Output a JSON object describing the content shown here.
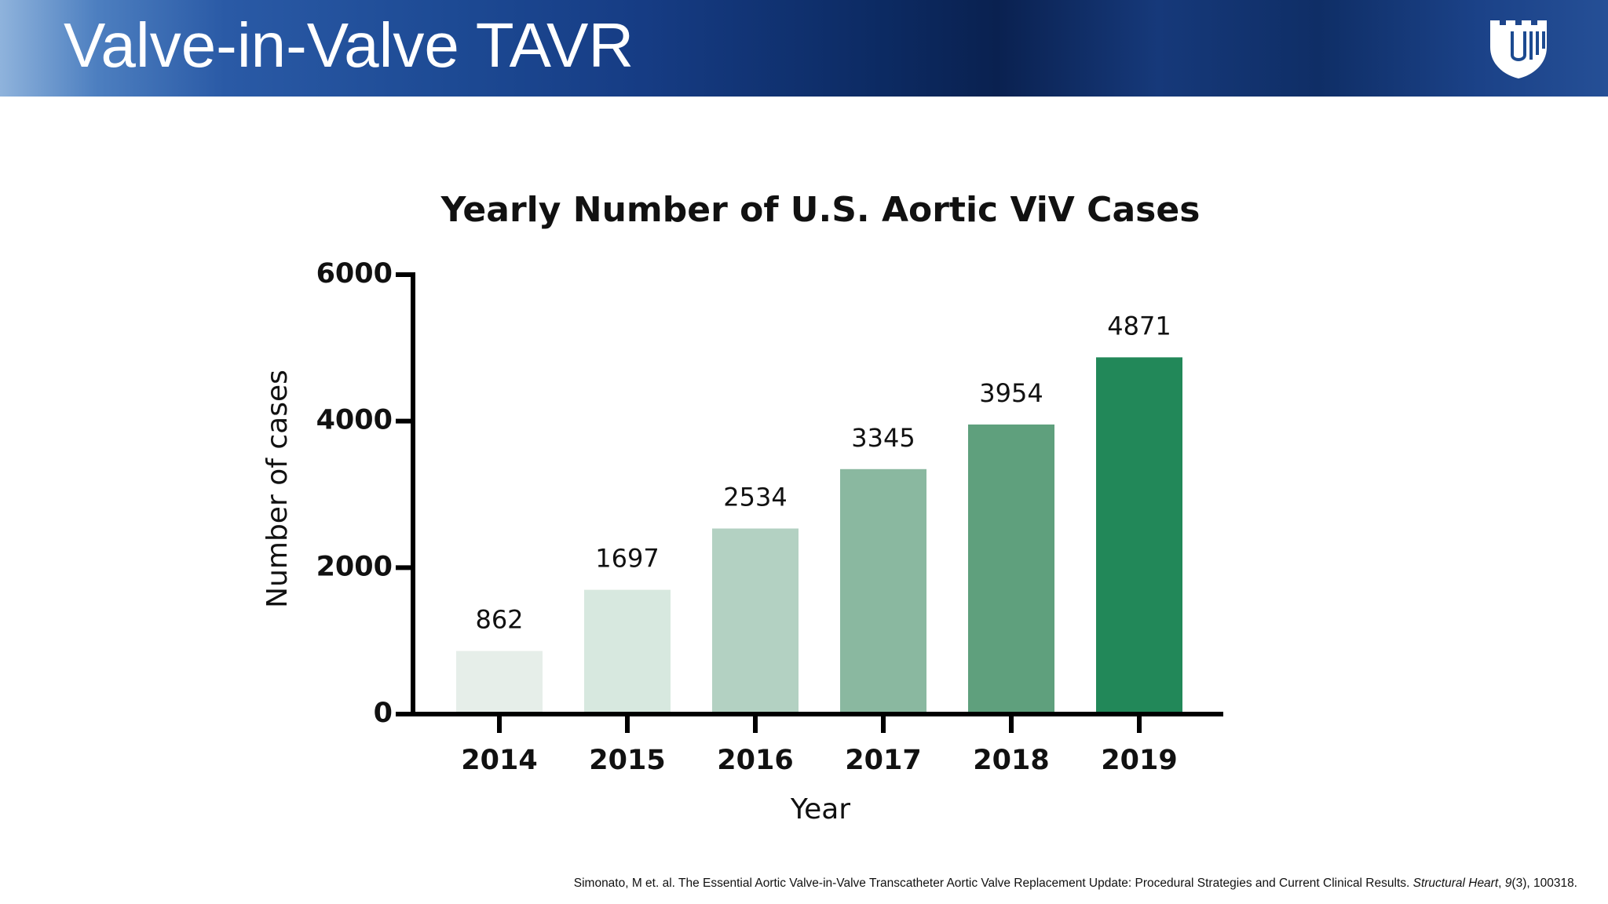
{
  "header": {
    "title": "Valve-in-Valve TAVR"
  },
  "chart_data": {
    "type": "bar",
    "title": "Yearly Number of U.S. Aortic ViV Cases",
    "x_label": "Year",
    "y_label": "Number of cases",
    "categories": [
      "2014",
      "2015",
      "2016",
      "2017",
      "2018",
      "2019"
    ],
    "values": [
      862,
      1697,
      2534,
      3345,
      3954,
      4871
    ],
    "colors": [
      "#e6eee9",
      "#d7e8df",
      "#b3d1c2",
      "#8ab8a0",
      "#5fa07d",
      "#228859"
    ],
    "ylim": [
      0,
      6000
    ],
    "yticks": [
      0,
      2000,
      4000,
      6000
    ],
    "grid": false
  },
  "footer": {
    "citation": [
      "Simonato, M et. al. The Essential Aortic Valve-in-Valve Transcatheter Aortic Valve Replacement Update: Procedural Strategies and Current Clinical Results. ",
      "Structural Heart",
      ", ",
      "9",
      "(3), 100318."
    ]
  }
}
